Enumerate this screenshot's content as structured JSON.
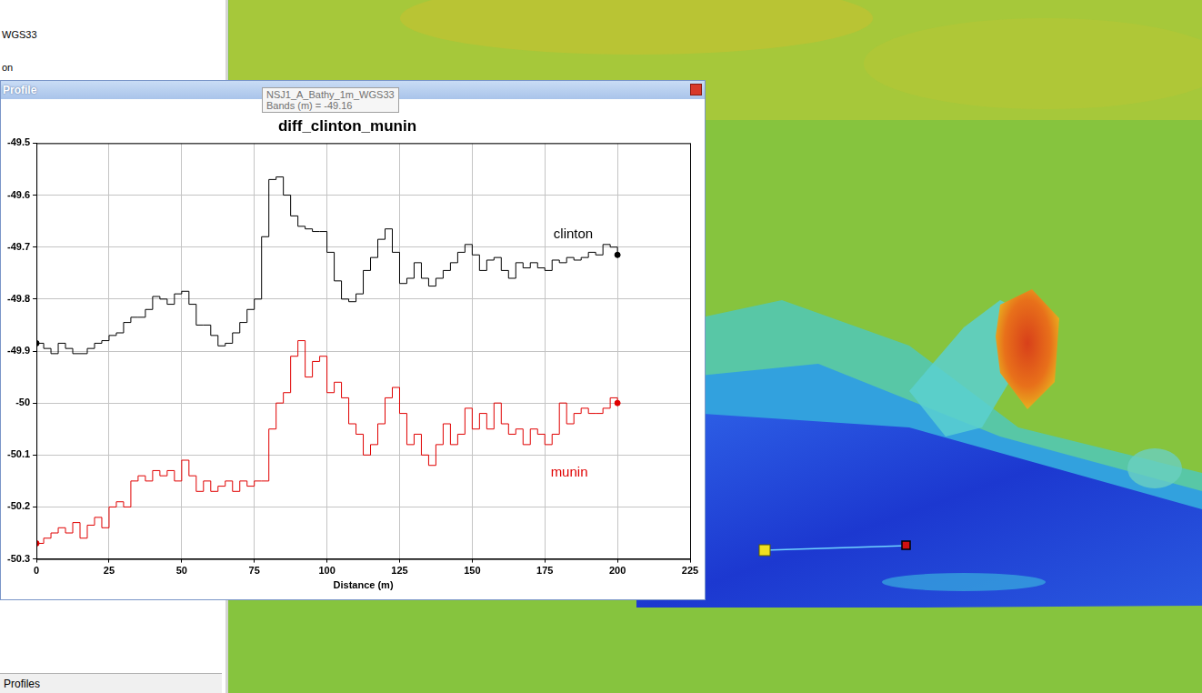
{
  "chart_data": {
    "type": "line",
    "title": "diff_clinton_munin",
    "x_label": "Distance (m)",
    "x": [
      0,
      2.5,
      5,
      7.5,
      10,
      12.5,
      15,
      17.5,
      20,
      22.5,
      25,
      27.5,
      30,
      32.5,
      35,
      37.5,
      40,
      42.5,
      45,
      47.5,
      50,
      52.5,
      55,
      57.5,
      60,
      62.5,
      65,
      67.5,
      70,
      72.5,
      75,
      77.5,
      80,
      82.5,
      85,
      87.5,
      90,
      92.5,
      95,
      97.5,
      100,
      102.5,
      105,
      107.5,
      110,
      112.5,
      115,
      117.5,
      120,
      122.5,
      125,
      127.5,
      130,
      132.5,
      135,
      137.5,
      140,
      142.5,
      145,
      147.5,
      150,
      152.5,
      155,
      157.5,
      160,
      162.5,
      165,
      167.5,
      170,
      172.5,
      175,
      177.5,
      180,
      182.5,
      185,
      187.5,
      190,
      192.5,
      195,
      197.5,
      200
    ],
    "series": [
      {
        "name": "clinton",
        "color": "#000000",
        "line_style": "steps",
        "values": [
          -49.885,
          -49.895,
          -49.905,
          -49.885,
          -49.895,
          -49.905,
          -49.905,
          -49.895,
          -49.885,
          -49.88,
          -49.87,
          -49.865,
          -49.845,
          -49.835,
          -49.835,
          -49.82,
          -49.795,
          -49.8,
          -49.81,
          -49.79,
          -49.785,
          -49.81,
          -49.85,
          -49.85,
          -49.87,
          -49.89,
          -49.885,
          -49.865,
          -49.845,
          -49.82,
          -49.8,
          -49.68,
          -49.57,
          -49.565,
          -49.6,
          -49.64,
          -49.66,
          -49.665,
          -49.67,
          -49.67,
          -49.71,
          -49.765,
          -49.8,
          -49.805,
          -49.79,
          -49.745,
          -49.72,
          -49.685,
          -49.665,
          -49.71,
          -49.77,
          -49.76,
          -49.73,
          -49.76,
          -49.775,
          -49.76,
          -49.745,
          -49.73,
          -49.71,
          -49.695,
          -49.715,
          -49.745,
          -49.725,
          -49.72,
          -49.745,
          -49.76,
          -49.73,
          -49.74,
          -49.73,
          -49.74,
          -49.745,
          -49.725,
          -49.73,
          -49.72,
          -49.725,
          -49.72,
          -49.71,
          -49.715,
          -49.695,
          -49.7,
          -49.715
        ]
      },
      {
        "name": "munin",
        "color": "#e00000",
        "line_style": "steps",
        "values": [
          -50.27,
          -50.26,
          -50.25,
          -50.24,
          -50.25,
          -50.23,
          -50.26,
          -50.235,
          -50.22,
          -50.24,
          -50.2,
          -50.19,
          -50.2,
          -50.15,
          -50.14,
          -50.15,
          -50.13,
          -50.14,
          -50.13,
          -50.15,
          -50.11,
          -50.14,
          -50.17,
          -50.15,
          -50.17,
          -50.16,
          -50.15,
          -50.17,
          -50.15,
          -50.16,
          -50.15,
          -50.15,
          -50.05,
          -50.0,
          -49.98,
          -49.91,
          -49.88,
          -49.95,
          -49.92,
          -49.91,
          -49.98,
          -49.96,
          -49.99,
          -50.04,
          -50.06,
          -50.1,
          -50.08,
          -50.04,
          -49.99,
          -49.97,
          -50.02,
          -50.08,
          -50.06,
          -50.1,
          -50.12,
          -50.08,
          -50.04,
          -50.08,
          -50.06,
          -50.01,
          -50.05,
          -50.02,
          -50.05,
          -50.0,
          -50.04,
          -50.06,
          -50.05,
          -50.08,
          -50.05,
          -50.06,
          -50.08,
          -50.06,
          -50.0,
          -50.04,
          -50.02,
          -50.01,
          -50.02,
          -50.02,
          -50.01,
          -49.99,
          -50.0
        ]
      }
    ],
    "xlim": [
      0,
      225
    ],
    "xticks": [
      0,
      25,
      50,
      75,
      100,
      125,
      150,
      175,
      200,
      225
    ],
    "ylim": [
      -50.3,
      -49.5
    ],
    "yticks": [
      -50.3,
      -50.2,
      -50.1,
      -50,
      -49.9,
      -49.8,
      -49.7,
      -49.6,
      -49.5
    ],
    "grid": true,
    "annotations": [
      {
        "text": "clinton",
        "x": 178,
        "y": -49.675,
        "color": "#000000"
      },
      {
        "text": "munin",
        "x": 177,
        "y": -50.135,
        "color": "#e00000"
      }
    ]
  },
  "screen": {
    "panel_lines": [
      "WGS33",
      "on"
    ],
    "window_title": "Profile",
    "tooltip": [
      "NSJ1_A_Bathy_1m_WGS33",
      "Bands (m) = -49.16"
    ],
    "tab": "Profiles"
  }
}
